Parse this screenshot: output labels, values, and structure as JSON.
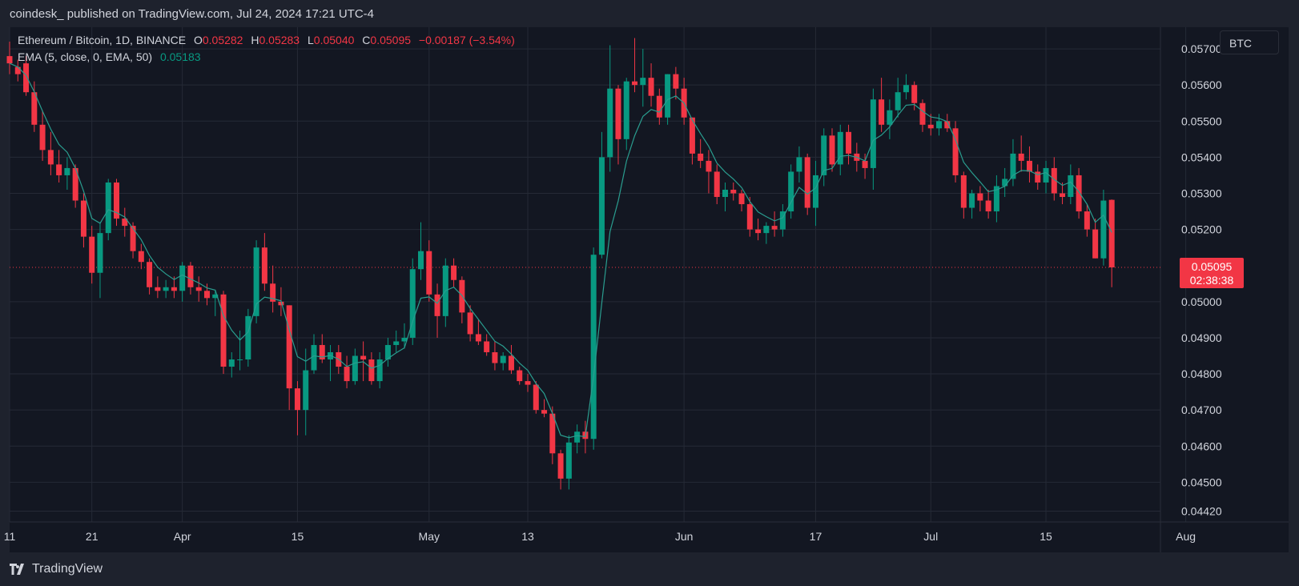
{
  "header": {
    "publisher_text": "coindesk_ published on TradingView.com, Jul 24, 2024 17:21 UTC-4"
  },
  "legend": {
    "symbol_line": "Ethereum / Bitcoin, 1D, BINANCE",
    "o_label": "O",
    "o_value": "0.05282",
    "h_label": "H",
    "h_value": "0.05283",
    "l_label": "L",
    "l_value": "0.05040",
    "c_label": "C",
    "c_value": "0.05095",
    "change": "−0.00187 (−3.54%)",
    "ema_label": "EMA (5, close, 0, EMA, 50)",
    "ema_value": "0.05183"
  },
  "currency_button": "BTC",
  "price_label": {
    "value": "0.05095",
    "countdown": "02:38:38"
  },
  "footer": {
    "brand": "TradingView"
  },
  "colors": {
    "up": "#089981",
    "down": "#f23645",
    "ema": "#2a9d8f",
    "background": "#131722",
    "grid": "#252a36",
    "axis_text": "#d1d4dc"
  },
  "chart_data": {
    "type": "candlestick",
    "symbol": "Ethereum / Bitcoin",
    "interval": "1D",
    "exchange": "BINANCE",
    "y_ticks": [
      "0.05700",
      "0.05600",
      "0.05500",
      "0.05400",
      "0.05300",
      "0.05200",
      "0.05000",
      "0.04900",
      "0.04800",
      "0.04700",
      "0.04600",
      "0.04500",
      "0.04420"
    ],
    "x_ticks": [
      {
        "label": "11",
        "day": 0
      },
      {
        "label": "21",
        "day": 10
      },
      {
        "label": "Apr",
        "day": 21
      },
      {
        "label": "15",
        "day": 35
      },
      {
        "label": "May",
        "day": 51
      },
      {
        "label": "13",
        "day": 63
      },
      {
        "label": "Jun",
        "day": 82
      },
      {
        "label": "17",
        "day": 98
      },
      {
        "label": "Jul",
        "day": 112
      },
      {
        "label": "15",
        "day": 126
      },
      {
        "label": "Aug",
        "day": 143
      }
    ],
    "ylim": [
      0.0439,
      0.0576
    ],
    "current_price": 0.05095,
    "ema_period": 5,
    "grid": true,
    "candles": [
      [
        "2024-03-11",
        0.0568,
        0.0572,
        0.0563,
        0.0566
      ],
      [
        "2024-03-12",
        0.0565,
        0.0567,
        0.0561,
        0.0563
      ],
      [
        "2024-03-13",
        0.0566,
        0.0568,
        0.0557,
        0.0558
      ],
      [
        "2024-03-14",
        0.0558,
        0.0561,
        0.0547,
        0.0549
      ],
      [
        "2024-03-15",
        0.0549,
        0.0553,
        0.0539,
        0.0542
      ],
      [
        "2024-03-16",
        0.0542,
        0.0547,
        0.0535,
        0.0538
      ],
      [
        "2024-03-17",
        0.0538,
        0.0542,
        0.0533,
        0.0535
      ],
      [
        "2024-03-18",
        0.0535,
        0.054,
        0.0531,
        0.0537
      ],
      [
        "2024-03-19",
        0.0537,
        0.0538,
        0.0526,
        0.0528
      ],
      [
        "2024-03-20",
        0.0528,
        0.053,
        0.0515,
        0.0518
      ],
      [
        "2024-03-21",
        0.0518,
        0.0521,
        0.0505,
        0.0508
      ],
      [
        "2024-03-22",
        0.0508,
        0.0522,
        0.0501,
        0.0519
      ],
      [
        "2024-03-23",
        0.0519,
        0.0534,
        0.0517,
        0.0533
      ],
      [
        "2024-03-24",
        0.0533,
        0.0534,
        0.0521,
        0.0523
      ],
      [
        "2024-03-25",
        0.0523,
        0.0526,
        0.0518,
        0.0521
      ],
      [
        "2024-03-26",
        0.0521,
        0.0522,
        0.0512,
        0.0514
      ],
      [
        "2024-03-27",
        0.0514,
        0.0516,
        0.0509,
        0.0511
      ],
      [
        "2024-03-28",
        0.0511,
        0.0512,
        0.0502,
        0.0504
      ],
      [
        "2024-03-29",
        0.0504,
        0.0507,
        0.0501,
        0.0503
      ],
      [
        "2024-03-30",
        0.0503,
        0.0506,
        0.0501,
        0.0504
      ],
      [
        "2024-03-31",
        0.0504,
        0.0507,
        0.0501,
        0.0503
      ],
      [
        "2024-04-01",
        0.0503,
        0.0511,
        0.05,
        0.051
      ],
      [
        "2024-04-02",
        0.051,
        0.0511,
        0.0502,
        0.0504
      ],
      [
        "2024-04-03",
        0.0504,
        0.0507,
        0.05,
        0.0503
      ],
      [
        "2024-04-04",
        0.0503,
        0.0505,
        0.0499,
        0.0501
      ],
      [
        "2024-04-05",
        0.0501,
        0.0503,
        0.0496,
        0.0502
      ],
      [
        "2024-04-06",
        0.0502,
        0.0503,
        0.048,
        0.0482
      ],
      [
        "2024-04-07",
        0.0482,
        0.0486,
        0.0479,
        0.0484
      ],
      [
        "2024-04-08",
        0.0484,
        0.0492,
        0.0481,
        0.0484
      ],
      [
        "2024-04-09",
        0.0484,
        0.0498,
        0.0482,
        0.0496
      ],
      [
        "2024-04-10",
        0.0496,
        0.0517,
        0.0494,
        0.0515
      ],
      [
        "2024-04-11",
        0.0515,
        0.0519,
        0.0503,
        0.0505
      ],
      [
        "2024-04-12",
        0.0505,
        0.051,
        0.0497,
        0.05
      ],
      [
        "2024-04-13",
        0.05,
        0.0504,
        0.0496,
        0.0499
      ],
      [
        "2024-04-14",
        0.0499,
        0.0499,
        0.047,
        0.0476
      ],
      [
        "2024-04-15",
        0.0476,
        0.0478,
        0.0463,
        0.047
      ],
      [
        "2024-04-16",
        0.047,
        0.0487,
        0.0463,
        0.0481
      ],
      [
        "2024-04-17",
        0.0481,
        0.0491,
        0.048,
        0.0488
      ],
      [
        "2024-04-18",
        0.0488,
        0.0491,
        0.0483,
        0.0484
      ],
      [
        "2024-04-19",
        0.0484,
        0.0488,
        0.0478,
        0.0486
      ],
      [
        "2024-04-20",
        0.0486,
        0.0488,
        0.048,
        0.0482
      ],
      [
        "2024-04-21",
        0.0482,
        0.0485,
        0.0476,
        0.0478
      ],
      [
        "2024-04-22",
        0.0478,
        0.0487,
        0.0477,
        0.0485
      ],
      [
        "2024-04-23",
        0.0485,
        0.0489,
        0.0478,
        0.0484
      ],
      [
        "2024-04-24",
        0.0484,
        0.0486,
        0.0477,
        0.0478
      ],
      [
        "2024-04-25",
        0.0478,
        0.0486,
        0.0476,
        0.0484
      ],
      [
        "2024-04-26",
        0.0484,
        0.049,
        0.0482,
        0.0488
      ],
      [
        "2024-04-27",
        0.0488,
        0.0492,
        0.0486,
        0.0489
      ],
      [
        "2024-04-28",
        0.0489,
        0.0494,
        0.0487,
        0.049
      ],
      [
        "2024-04-29",
        0.049,
        0.0512,
        0.0488,
        0.0509
      ],
      [
        "2024-04-30",
        0.0509,
        0.0522,
        0.0506,
        0.0514
      ],
      [
        "2024-05-01",
        0.0514,
        0.0517,
        0.05,
        0.0502
      ],
      [
        "2024-05-02",
        0.0502,
        0.0505,
        0.049,
        0.0496
      ],
      [
        "2024-05-03",
        0.0496,
        0.0512,
        0.0493,
        0.051
      ],
      [
        "2024-05-04",
        0.051,
        0.0512,
        0.0504,
        0.0506
      ],
      [
        "2024-05-05",
        0.0506,
        0.0507,
        0.0494,
        0.0497
      ],
      [
        "2024-05-06",
        0.0497,
        0.0499,
        0.0489,
        0.0491
      ],
      [
        "2024-05-07",
        0.0491,
        0.0495,
        0.0488,
        0.0489
      ],
      [
        "2024-05-08",
        0.0489,
        0.0491,
        0.0485,
        0.0486
      ],
      [
        "2024-05-09",
        0.0486,
        0.0489,
        0.0481,
        0.0483
      ],
      [
        "2024-05-10",
        0.0483,
        0.0486,
        0.0481,
        0.0485
      ],
      [
        "2024-05-11",
        0.0485,
        0.0488,
        0.048,
        0.0481
      ],
      [
        "2024-05-12",
        0.0481,
        0.0482,
        0.0477,
        0.0478
      ],
      [
        "2024-05-13",
        0.0478,
        0.048,
        0.0475,
        0.0477
      ],
      [
        "2024-05-14",
        0.0477,
        0.0478,
        0.0469,
        0.047
      ],
      [
        "2024-05-15",
        0.047,
        0.0473,
        0.0468,
        0.0469
      ],
      [
        "2024-05-16",
        0.0469,
        0.0471,
        0.0455,
        0.0458
      ],
      [
        "2024-05-17",
        0.0458,
        0.0459,
        0.0448,
        0.0451
      ],
      [
        "2024-05-18",
        0.0451,
        0.0463,
        0.0448,
        0.0461
      ],
      [
        "2024-05-19",
        0.0461,
        0.0466,
        0.0458,
        0.0464
      ],
      [
        "2024-05-20",
        0.0464,
        0.0467,
        0.0458,
        0.0462
      ],
      [
        "2024-05-21",
        0.0462,
        0.0515,
        0.0459,
        0.0513
      ],
      [
        "2024-05-22",
        0.0513,
        0.0547,
        0.0512,
        0.054
      ],
      [
        "2024-05-23",
        0.054,
        0.0571,
        0.0536,
        0.0559
      ],
      [
        "2024-05-24",
        0.0559,
        0.056,
        0.0538,
        0.0545
      ],
      [
        "2024-05-25",
        0.0545,
        0.0562,
        0.0542,
        0.0561
      ],
      [
        "2024-05-26",
        0.0561,
        0.0573,
        0.0558,
        0.056
      ],
      [
        "2024-05-27",
        0.056,
        0.057,
        0.0554,
        0.0562
      ],
      [
        "2024-05-28",
        0.0562,
        0.0566,
        0.0554,
        0.0557
      ],
      [
        "2024-05-29",
        0.0557,
        0.0559,
        0.0549,
        0.0551
      ],
      [
        "2024-05-30",
        0.0551,
        0.0563,
        0.0549,
        0.0563
      ],
      [
        "2024-05-31",
        0.0563,
        0.0565,
        0.0556,
        0.0559
      ],
      [
        "2024-06-01",
        0.0559,
        0.0562,
        0.0549,
        0.0551
      ],
      [
        "2024-06-02",
        0.0551,
        0.0551,
        0.0538,
        0.0541
      ],
      [
        "2024-06-03",
        0.0541,
        0.0545,
        0.0537,
        0.0539
      ],
      [
        "2024-06-04",
        0.0539,
        0.0542,
        0.053,
        0.0536
      ],
      [
        "2024-06-05",
        0.0536,
        0.0538,
        0.0527,
        0.0529
      ],
      [
        "2024-06-06",
        0.0529,
        0.0533,
        0.0525,
        0.0531
      ],
      [
        "2024-06-07",
        0.0531,
        0.0533,
        0.0528,
        0.053
      ],
      [
        "2024-06-08",
        0.053,
        0.0531,
        0.0525,
        0.0527
      ],
      [
        "2024-06-09",
        0.0527,
        0.0529,
        0.0518,
        0.052
      ],
      [
        "2024-06-10",
        0.052,
        0.0523,
        0.0517,
        0.0519
      ],
      [
        "2024-06-11",
        0.0519,
        0.0522,
        0.0516,
        0.0521
      ],
      [
        "2024-06-12",
        0.0521,
        0.0525,
        0.0518,
        0.052
      ],
      [
        "2024-06-13",
        0.052,
        0.0527,
        0.0518,
        0.0525
      ],
      [
        "2024-06-14",
        0.0525,
        0.0538,
        0.0523,
        0.0536
      ],
      [
        "2024-06-15",
        0.0536,
        0.0543,
        0.0533,
        0.054
      ],
      [
        "2024-06-16",
        0.054,
        0.0541,
        0.0524,
        0.0526
      ],
      [
        "2024-06-17",
        0.0526,
        0.0539,
        0.0521,
        0.0535
      ],
      [
        "2024-06-18",
        0.0535,
        0.0548,
        0.0532,
        0.0546
      ],
      [
        "2024-06-19",
        0.0546,
        0.0548,
        0.0536,
        0.0538
      ],
      [
        "2024-06-20",
        0.0538,
        0.0549,
        0.0535,
        0.0547
      ],
      [
        "2024-06-21",
        0.0547,
        0.0549,
        0.0538,
        0.0541
      ],
      [
        "2024-06-22",
        0.0541,
        0.0544,
        0.0536,
        0.0539
      ],
      [
        "2024-06-23",
        0.0539,
        0.0541,
        0.0534,
        0.0537
      ],
      [
        "2024-06-24",
        0.0537,
        0.0559,
        0.0531,
        0.0556
      ],
      [
        "2024-06-25",
        0.0556,
        0.0562,
        0.0547,
        0.0549
      ],
      [
        "2024-06-26",
        0.0549,
        0.0556,
        0.0545,
        0.0553
      ],
      [
        "2024-06-27",
        0.0553,
        0.0562,
        0.0551,
        0.0558
      ],
      [
        "2024-06-28",
        0.0558,
        0.0563,
        0.0556,
        0.056
      ],
      [
        "2024-06-29",
        0.056,
        0.0561,
        0.0553,
        0.0555
      ],
      [
        "2024-06-30",
        0.0555,
        0.0556,
        0.0547,
        0.0549
      ],
      [
        "2024-07-01",
        0.0549,
        0.0552,
        0.0546,
        0.0548
      ],
      [
        "2024-07-02",
        0.0548,
        0.0552,
        0.0546,
        0.055
      ],
      [
        "2024-07-03",
        0.055,
        0.0552,
        0.0547,
        0.0548
      ],
      [
        "2024-07-04",
        0.0548,
        0.055,
        0.0533,
        0.0535
      ],
      [
        "2024-07-05",
        0.0535,
        0.0536,
        0.0523,
        0.0526
      ],
      [
        "2024-07-06",
        0.0526,
        0.0531,
        0.0523,
        0.053
      ],
      [
        "2024-07-07",
        0.053,
        0.0532,
        0.0525,
        0.0528
      ],
      [
        "2024-07-08",
        0.0528,
        0.0531,
        0.0523,
        0.0525
      ],
      [
        "2024-07-09",
        0.0525,
        0.0535,
        0.0522,
        0.0532
      ],
      [
        "2024-07-10",
        0.0532,
        0.0537,
        0.0529,
        0.0534
      ],
      [
        "2024-07-11",
        0.0534,
        0.0545,
        0.0532,
        0.0541
      ],
      [
        "2024-07-12",
        0.0541,
        0.0546,
        0.0536,
        0.0539
      ],
      [
        "2024-07-13",
        0.0539,
        0.0543,
        0.0533,
        0.0536
      ],
      [
        "2024-07-14",
        0.0536,
        0.0538,
        0.0531,
        0.0533
      ],
      [
        "2024-07-15",
        0.0533,
        0.0539,
        0.053,
        0.0537
      ],
      [
        "2024-07-16",
        0.0537,
        0.054,
        0.0528,
        0.053
      ],
      [
        "2024-07-17",
        0.053,
        0.0533,
        0.0527,
        0.0529
      ],
      [
        "2024-07-18",
        0.0529,
        0.0538,
        0.0527,
        0.0535
      ],
      [
        "2024-07-19",
        0.0535,
        0.0537,
        0.0523,
        0.0525
      ],
      [
        "2024-07-20",
        0.0525,
        0.0527,
        0.0518,
        0.052
      ],
      [
        "2024-07-21",
        0.052,
        0.0523,
        0.0512,
        0.0512
      ],
      [
        "2024-07-22",
        0.0512,
        0.0531,
        0.051,
        0.0528
      ],
      [
        "2024-07-23",
        0.05282,
        0.05283,
        0.0504,
        0.05095
      ]
    ]
  }
}
